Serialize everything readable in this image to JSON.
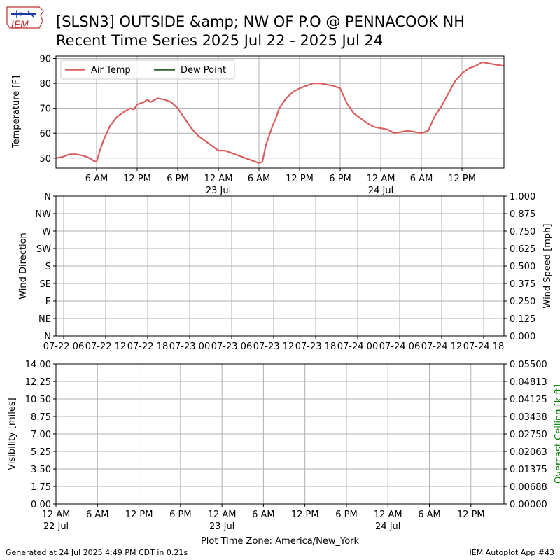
{
  "header": {
    "title_line1": "[SLSN3] OUTSIDE &amp; NW OF P.O @ PENNACOOK  NH",
    "title_line2": "Recent Time Series 2025 Jul 22 - 2025 Jul 24",
    "logo_text": "IEM"
  },
  "footer": {
    "generated": "Generated at 24 Jul 2025 4:49 PM CDT in 0.21s",
    "app": "IEM Autoplot App #43"
  },
  "colors": {
    "air_temp": "#d95f5f",
    "dew_point": "#2e5e2e",
    "grid": "#b0b0b0",
    "ceiling_label": "#008000"
  },
  "chart_data": [
    {
      "type": "line",
      "panel": "temperature",
      "ylabel": "Temperature [F]",
      "ylim": [
        46,
        91
      ],
      "yticks": [
        50,
        60,
        70,
        80,
        90
      ],
      "xlim_hours": [
        0,
        66.2
      ],
      "xticks": [
        {
          "hour": 6,
          "label": "6 AM",
          "sub": ""
        },
        {
          "hour": 12,
          "label": "12 PM",
          "sub": ""
        },
        {
          "hour": 18,
          "label": "6 PM",
          "sub": ""
        },
        {
          "hour": 24,
          "label": "12 AM",
          "sub": "23 Jul"
        },
        {
          "hour": 30,
          "label": "6 AM",
          "sub": ""
        },
        {
          "hour": 36,
          "label": "12 PM",
          "sub": ""
        },
        {
          "hour": 42,
          "label": "6 PM",
          "sub": ""
        },
        {
          "hour": 48,
          "label": "12 AM",
          "sub": "24 Jul"
        },
        {
          "hour": 54,
          "label": "6 AM",
          "sub": ""
        },
        {
          "hour": 60,
          "label": "12 PM",
          "sub": ""
        }
      ],
      "grid": true,
      "legend": "top-left",
      "series": [
        {
          "name": "Air Temp",
          "x": [
            0,
            1,
            2,
            3,
            4,
            5,
            5.5,
            6,
            6.5,
            7,
            7.5,
            8,
            9,
            10,
            11,
            11.5,
            12,
            13,
            13.5,
            14,
            15,
            16,
            17,
            18,
            19,
            20,
            21,
            22,
            23,
            24,
            25,
            26,
            27,
            28,
            29,
            30,
            30.5,
            31,
            31.5,
            32,
            32.5,
            33,
            34,
            35,
            36,
            37,
            38,
            39,
            40,
            41,
            42,
            43,
            44,
            45,
            46,
            47,
            48,
            49,
            50,
            51,
            52,
            53,
            54,
            55,
            56,
            57,
            58,
            59,
            60,
            61,
            62,
            63,
            64,
            65,
            66.2
          ],
          "y": [
            50,
            50.5,
            51.5,
            51.5,
            51,
            50,
            49,
            48.5,
            53,
            57,
            60,
            63,
            66.5,
            68.5,
            70,
            69.5,
            71.5,
            72.5,
            73.5,
            72.5,
            74,
            73.5,
            72.5,
            70,
            66,
            62,
            59,
            57,
            55,
            53,
            53,
            52,
            51,
            50,
            49,
            48,
            48.5,
            55,
            59,
            63,
            66,
            70,
            74,
            76.5,
            78,
            79,
            80,
            80,
            79.5,
            79,
            78,
            72,
            68,
            66,
            64,
            62.5,
            62,
            61.5,
            60,
            60.5,
            61,
            60.5,
            60,
            61,
            67,
            71,
            76,
            81,
            84,
            86,
            87,
            88.5,
            88,
            87.5,
            87
          ]
        },
        {
          "name": "Dew Point",
          "x": [],
          "y": []
        }
      ]
    },
    {
      "type": "line",
      "panel": "wind",
      "ylabel": "Wind Direction",
      "y2label": "Wind Speed [mph]",
      "ylim": [
        0,
        360
      ],
      "yticks": [
        "N",
        "NE",
        "E",
        "SE",
        "S",
        "SW",
        "W",
        "NW",
        "N"
      ],
      "y2ticks": [
        "0.000",
        "0.125",
        "0.250",
        "0.375",
        "0.500",
        "0.625",
        "0.750",
        "0.875",
        "1.000"
      ],
      "xticks": [
        {
          "hour": 6,
          "label": "07-22 06"
        },
        {
          "hour": 12,
          "label": "07-22 12"
        },
        {
          "hour": 18,
          "label": "07-22 18"
        },
        {
          "hour": 24,
          "label": "07-23 00"
        },
        {
          "hour": 30,
          "label": "07-23 06"
        },
        {
          "hour": 36,
          "label": "07-23 12"
        },
        {
          "hour": 42,
          "label": "07-23 18"
        },
        {
          "hour": 48,
          "label": "07-24 00"
        },
        {
          "hour": 54,
          "label": "07-24 06"
        },
        {
          "hour": 60,
          "label": "07-24 12"
        },
        {
          "hour": 66,
          "label": "07-24 18"
        }
      ],
      "grid": true,
      "series": []
    },
    {
      "type": "line",
      "panel": "visibility",
      "ylabel": "Visibility [miles]",
      "y2label": "Overcast Ceiling [k ft]",
      "ylim": [
        0,
        14
      ],
      "yticks": [
        "0.00",
        "1.75",
        "3.50",
        "5.25",
        "7.00",
        "8.75",
        "10.50",
        "12.25",
        "14.00"
      ],
      "y2ticks": [
        "0.00000",
        "0.00688",
        "0.01375",
        "0.02063",
        "0.02750",
        "0.03438",
        "0.04125",
        "0.04813",
        "0.05500"
      ],
      "xticks": [
        {
          "hour": 0,
          "label": "12 AM",
          "sub": "22 Jul"
        },
        {
          "hour": 6,
          "label": "6 AM",
          "sub": ""
        },
        {
          "hour": 12,
          "label": "12 PM",
          "sub": ""
        },
        {
          "hour": 18,
          "label": "6 PM",
          "sub": ""
        },
        {
          "hour": 24,
          "label": "12 AM",
          "sub": "23 Jul"
        },
        {
          "hour": 30,
          "label": "6 AM",
          "sub": ""
        },
        {
          "hour": 36,
          "label": "12 PM",
          "sub": ""
        },
        {
          "hour": 42,
          "label": "6 PM",
          "sub": ""
        },
        {
          "hour": 48,
          "label": "12 AM",
          "sub": "24 Jul"
        },
        {
          "hour": 54,
          "label": "6 AM",
          "sub": ""
        },
        {
          "hour": 60,
          "label": "12 PM",
          "sub": ""
        }
      ],
      "xlabel": "Plot Time Zone: America/New_York",
      "grid": true,
      "series": []
    }
  ]
}
